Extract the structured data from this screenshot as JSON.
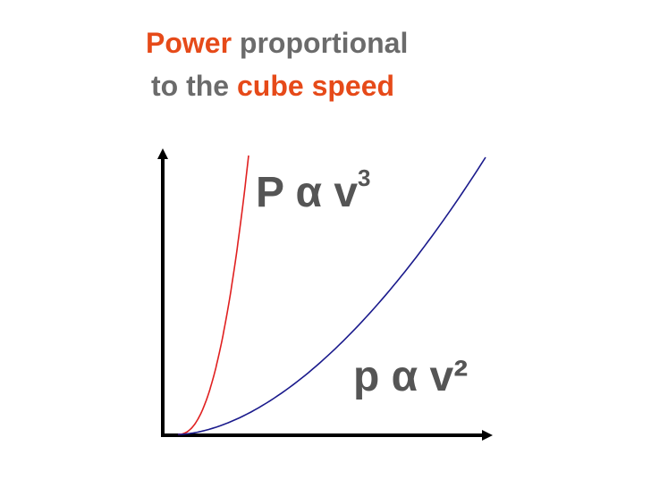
{
  "title": {
    "line1_accent": "Power",
    "line1_rest": " proportional",
    "line2_prefix": "to the ",
    "line2_accent": "cube speed"
  },
  "labels": {
    "cube_main": "P α v",
    "cube_exp": "3",
    "square": "p α v²"
  },
  "colors": {
    "accent_text": "#e64a19",
    "title_gray": "#6b6b6b",
    "label_gray": "#555555",
    "cube_curve": "#e02020",
    "square_curve": "#1a1a8c",
    "axes": "#000000"
  }
}
